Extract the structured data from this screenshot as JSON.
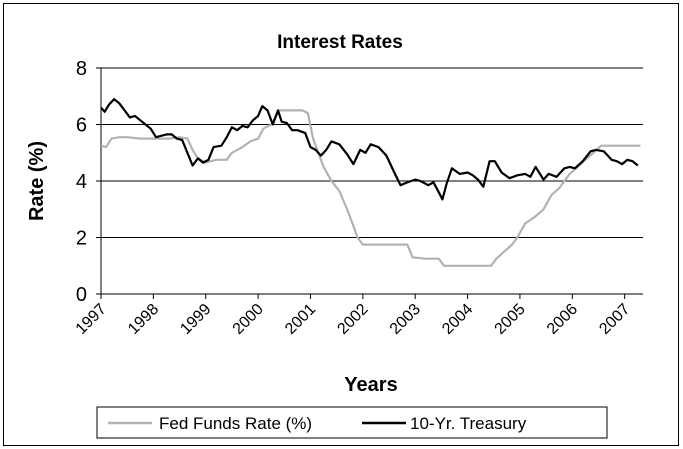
{
  "chart_data": {
    "type": "line",
    "title": "Interest Rates",
    "xlabel": "Years",
    "ylabel": "Rate (%)",
    "ylim": [
      0,
      8
    ],
    "yticks": [
      "0",
      "2",
      "4",
      "6",
      "8"
    ],
    "xlim": [
      1997,
      2007.35
    ],
    "xticks": [
      "1997",
      "1998",
      "1999",
      "2000",
      "2001",
      "2002",
      "2003",
      "2004",
      "2005",
      "2006",
      "2007"
    ],
    "grid": "horizontal",
    "legend": "bottom",
    "series": [
      {
        "name": "Fed Funds Rate (%)",
        "color": "#b2b2b2",
        "points": [
          [
            1997.0,
            5.25
          ],
          [
            1997.1,
            5.2
          ],
          [
            1997.2,
            5.5
          ],
          [
            1997.35,
            5.55
          ],
          [
            1997.5,
            5.55
          ],
          [
            1997.75,
            5.5
          ],
          [
            1998.0,
            5.5
          ],
          [
            1998.3,
            5.5
          ],
          [
            1998.5,
            5.55
          ],
          [
            1998.65,
            5.5
          ],
          [
            1998.75,
            5.1
          ],
          [
            1998.85,
            4.8
          ],
          [
            1999.0,
            4.65
          ],
          [
            1999.2,
            4.75
          ],
          [
            1999.4,
            4.75
          ],
          [
            1999.5,
            5.0
          ],
          [
            1999.7,
            5.2
          ],
          [
            1999.85,
            5.4
          ],
          [
            2000.0,
            5.5
          ],
          [
            2000.1,
            5.85
          ],
          [
            2000.25,
            6.0
          ],
          [
            2000.4,
            6.5
          ],
          [
            2000.6,
            6.5
          ],
          [
            2000.85,
            6.5
          ],
          [
            2000.95,
            6.4
          ],
          [
            2001.05,
            5.5
          ],
          [
            2001.15,
            5.0
          ],
          [
            2001.25,
            4.5
          ],
          [
            2001.4,
            4.0
          ],
          [
            2001.55,
            3.65
          ],
          [
            2001.7,
            3.0
          ],
          [
            2001.8,
            2.5
          ],
          [
            2001.9,
            2.0
          ],
          [
            2002.0,
            1.75
          ],
          [
            2002.3,
            1.75
          ],
          [
            2002.6,
            1.75
          ],
          [
            2002.85,
            1.75
          ],
          [
            2002.95,
            1.3
          ],
          [
            2003.2,
            1.25
          ],
          [
            2003.45,
            1.25
          ],
          [
            2003.55,
            1.0
          ],
          [
            2003.8,
            1.0
          ],
          [
            2004.0,
            1.0
          ],
          [
            2004.3,
            1.0
          ],
          [
            2004.45,
            1.0
          ],
          [
            2004.55,
            1.25
          ],
          [
            2004.7,
            1.5
          ],
          [
            2004.85,
            1.75
          ],
          [
            2004.95,
            2.0
          ],
          [
            2005.1,
            2.5
          ],
          [
            2005.3,
            2.75
          ],
          [
            2005.45,
            3.0
          ],
          [
            2005.6,
            3.5
          ],
          [
            2005.75,
            3.75
          ],
          [
            2005.95,
            4.25
          ],
          [
            2006.1,
            4.5
          ],
          [
            2006.25,
            4.75
          ],
          [
            2006.4,
            5.0
          ],
          [
            2006.55,
            5.25
          ],
          [
            2006.8,
            5.25
          ],
          [
            2007.0,
            5.25
          ],
          [
            2007.3,
            5.25
          ]
        ]
      },
      {
        "name": "10-Yr. Treasury",
        "color": "#000000",
        "points": [
          [
            1997.0,
            6.6
          ],
          [
            1997.07,
            6.45
          ],
          [
            1997.15,
            6.7
          ],
          [
            1997.25,
            6.9
          ],
          [
            1997.35,
            6.75
          ],
          [
            1997.45,
            6.5
          ],
          [
            1997.55,
            6.25
          ],
          [
            1997.65,
            6.3
          ],
          [
            1997.75,
            6.15
          ],
          [
            1997.85,
            6.0
          ],
          [
            1997.95,
            5.85
          ],
          [
            1998.05,
            5.55
          ],
          [
            1998.15,
            5.6
          ],
          [
            1998.25,
            5.65
          ],
          [
            1998.35,
            5.65
          ],
          [
            1998.45,
            5.5
          ],
          [
            1998.55,
            5.45
          ],
          [
            1998.65,
            5.0
          ],
          [
            1998.75,
            4.55
          ],
          [
            1998.85,
            4.8
          ],
          [
            1998.95,
            4.65
          ],
          [
            1999.05,
            4.75
          ],
          [
            1999.15,
            5.2
          ],
          [
            1999.3,
            5.25
          ],
          [
            1999.4,
            5.55
          ],
          [
            1999.5,
            5.9
          ],
          [
            1999.6,
            5.8
          ],
          [
            1999.7,
            5.95
          ],
          [
            1999.8,
            5.9
          ],
          [
            1999.9,
            6.15
          ],
          [
            2000.0,
            6.3
          ],
          [
            2000.08,
            6.65
          ],
          [
            2000.18,
            6.5
          ],
          [
            2000.28,
            6.0
          ],
          [
            2000.38,
            6.5
          ],
          [
            2000.45,
            6.1
          ],
          [
            2000.55,
            6.05
          ],
          [
            2000.65,
            5.8
          ],
          [
            2000.75,
            5.8
          ],
          [
            2000.9,
            5.7
          ],
          [
            2001.0,
            5.2
          ],
          [
            2001.1,
            5.1
          ],
          [
            2001.2,
            4.9
          ],
          [
            2001.3,
            5.1
          ],
          [
            2001.4,
            5.4
          ],
          [
            2001.55,
            5.3
          ],
          [
            2001.7,
            4.95
          ],
          [
            2001.82,
            4.6
          ],
          [
            2001.95,
            5.1
          ],
          [
            2002.05,
            5.0
          ],
          [
            2002.15,
            5.3
          ],
          [
            2002.3,
            5.2
          ],
          [
            2002.45,
            4.9
          ],
          [
            2002.6,
            4.3
          ],
          [
            2002.72,
            3.85
          ],
          [
            2002.85,
            3.95
          ],
          [
            2003.0,
            4.05
          ],
          [
            2003.1,
            4.0
          ],
          [
            2003.25,
            3.85
          ],
          [
            2003.35,
            3.95
          ],
          [
            2003.45,
            3.6
          ],
          [
            2003.52,
            3.35
          ],
          [
            2003.6,
            3.9
          ],
          [
            2003.7,
            4.45
          ],
          [
            2003.85,
            4.25
          ],
          [
            2004.0,
            4.3
          ],
          [
            2004.1,
            4.2
          ],
          [
            2004.2,
            4.05
          ],
          [
            2004.3,
            3.8
          ],
          [
            2004.42,
            4.7
          ],
          [
            2004.52,
            4.7
          ],
          [
            2004.65,
            4.3
          ],
          [
            2004.8,
            4.1
          ],
          [
            2004.95,
            4.2
          ],
          [
            2005.1,
            4.25
          ],
          [
            2005.2,
            4.15
          ],
          [
            2005.3,
            4.5
          ],
          [
            2005.45,
            4.05
          ],
          [
            2005.55,
            4.25
          ],
          [
            2005.7,
            4.15
          ],
          [
            2005.85,
            4.45
          ],
          [
            2005.95,
            4.5
          ],
          [
            2006.05,
            4.45
          ],
          [
            2006.2,
            4.7
          ],
          [
            2006.35,
            5.05
          ],
          [
            2006.45,
            5.1
          ],
          [
            2006.6,
            5.05
          ],
          [
            2006.75,
            4.75
          ],
          [
            2006.85,
            4.7
          ],
          [
            2006.95,
            4.6
          ],
          [
            2007.05,
            4.75
          ],
          [
            2007.15,
            4.7
          ],
          [
            2007.25,
            4.55
          ]
        ]
      }
    ]
  }
}
